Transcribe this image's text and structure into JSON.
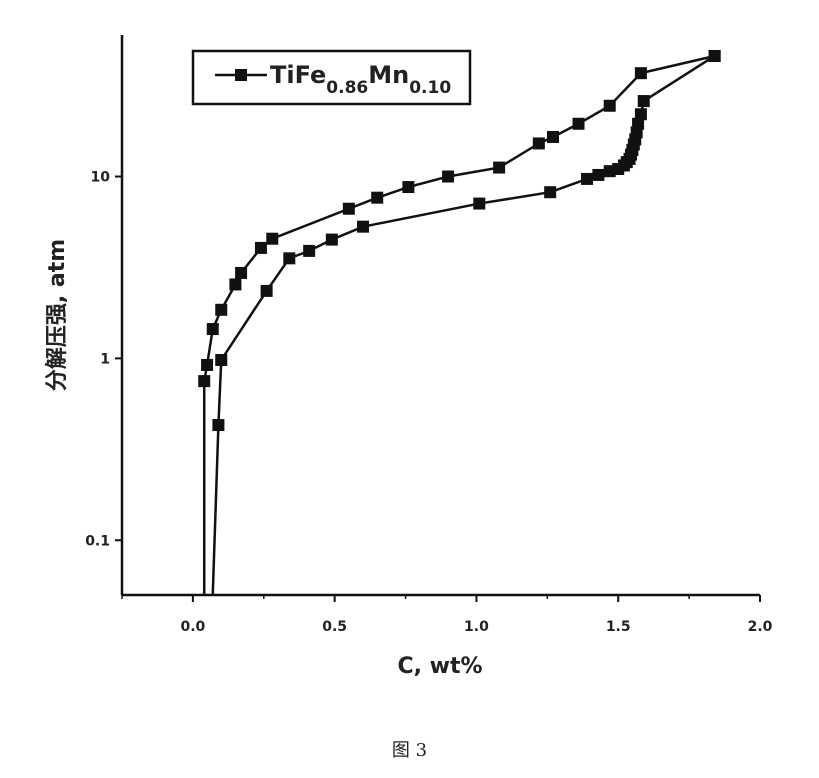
{
  "chart_data": {
    "type": "line",
    "xlabel": "C, wt%",
    "ylabel": "分解压强, atm",
    "x_ticks": [
      "0.0",
      "0.5",
      "1.0",
      "1.5",
      "2.0"
    ],
    "y_ticks": [
      "0.1",
      "1",
      "10"
    ],
    "xlim": [
      -0.25,
      2.0
    ],
    "ylim": [
      0.05,
      60
    ],
    "y_scale": "log",
    "grid": false,
    "legend": {
      "placement": "top-left",
      "base": "TiFe",
      "sub1": "0.86",
      "mid": "Mn",
      "sub2": "0.10"
    },
    "series": [
      {
        "name": "TiFe0.86Mn0.10",
        "marker": "square",
        "color": "#111111",
        "absorption": {
          "x": [
            0.04,
            0.04,
            0.05,
            0.07,
            0.1,
            0.15,
            0.17,
            0.24,
            0.28,
            0.55,
            0.65,
            0.76,
            0.9,
            1.08,
            1.22,
            1.27,
            1.36,
            1.47,
            1.58,
            1.84
          ],
          "y": [
            0.05,
            0.75,
            0.92,
            1.45,
            1.85,
            2.55,
            2.95,
            4.05,
            4.55,
            6.65,
            7.65,
            8.75,
            10.0,
            11.2,
            15.2,
            16.5,
            19.5,
            24.5,
            37.0,
            46.0
          ]
        },
        "desorption": {
          "x": [
            1.84,
            1.59,
            1.58,
            1.57,
            1.565,
            1.56,
            1.555,
            1.55,
            1.545,
            1.54,
            1.53,
            1.52,
            1.5,
            1.47,
            1.43,
            1.39,
            1.26,
            1.01,
            0.6,
            0.49,
            0.41,
            0.34,
            0.26,
            0.1,
            0.09,
            0.07
          ],
          "y": [
            46.0,
            26.0,
            22.0,
            19.5,
            17.5,
            16.0,
            15.0,
            14.0,
            13.2,
            12.5,
            12.0,
            11.5,
            11.0,
            10.7,
            10.2,
            9.7,
            8.2,
            7.1,
            5.3,
            4.5,
            3.9,
            3.55,
            2.35,
            0.98,
            0.43,
            0.05
          ]
        }
      }
    ]
  },
  "caption": "图 3"
}
